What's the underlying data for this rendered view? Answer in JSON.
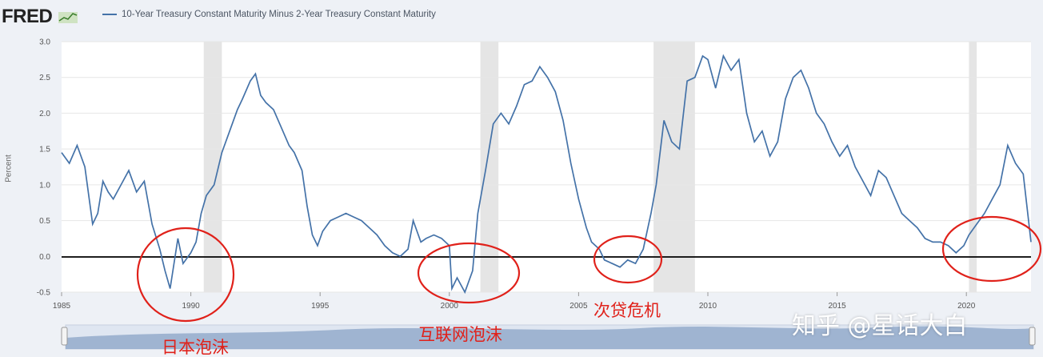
{
  "header": {
    "logo_text": "FRED",
    "legend_label": "10-Year Treasury Constant Maturity Minus 2-Year Treasury Constant Maturity"
  },
  "annotations": {
    "japan_bubble": "日本泡沫",
    "dotcom_bubble": "互联网泡沫",
    "subprime_crisis": "次贷危机"
  },
  "watermark": "知乎 @星话大白",
  "chart_data": {
    "type": "line",
    "title": "",
    "ylabel": "Percent",
    "xlabel": "",
    "xlim": [
      1985,
      2022.5
    ],
    "ylim": [
      -0.5,
      3.0
    ],
    "y_ticks": [
      "3.0",
      "2.5",
      "2.0",
      "1.5",
      "1.0",
      "0.5",
      "0.0",
      "-0.5"
    ],
    "x_ticks": [
      "1985",
      "1990",
      "1995",
      "2000",
      "2005",
      "2010",
      "2015",
      "2020"
    ],
    "recessions": [
      [
        1990.5,
        1991.2
      ],
      [
        2001.2,
        2001.9
      ],
      [
        2007.9,
        2009.5
      ],
      [
        2020.1,
        2020.4
      ]
    ],
    "colors": {
      "line": "#4472a8",
      "recession": "#e5e5e5",
      "zero_line": "#000000",
      "annotation": "#e0211a"
    },
    "series": [
      {
        "x": [
          1985.0,
          1985.3,
          1985.6,
          1985.9,
          1986.2,
          1986.4,
          1986.6,
          1986.8,
          1987.0,
          1987.3,
          1987.6,
          1987.9,
          1988.2,
          1988.5,
          1988.8,
          1989.0,
          1989.2,
          1989.5,
          1989.7,
          1990.0,
          1990.2,
          1990.4,
          1990.6,
          1990.9,
          1991.2,
          1991.5,
          1991.8,
          1992.0,
          1992.3,
          1992.5,
          1992.7,
          1992.9,
          1993.2,
          1993.5,
          1993.8,
          1994.0,
          1994.3,
          1994.5,
          1994.7,
          1994.9,
          1995.1,
          1995.4,
          1995.7,
          1996.0,
          1996.3,
          1996.6,
          1996.9,
          1997.2,
          1997.5,
          1997.8,
          1998.1,
          1998.4,
          1998.6,
          1998.9,
          1999.1,
          1999.4,
          1999.7,
          2000.0,
          2000.1,
          2000.3,
          2000.6,
          2000.9,
          2001.1,
          2001.4,
          2001.7,
          2002.0,
          2002.3,
          2002.6,
          2002.9,
          2003.2,
          2003.5,
          2003.8,
          2004.1,
          2004.4,
          2004.7,
          2005.0,
          2005.3,
          2005.5,
          2005.8,
          2006.0,
          2006.3,
          2006.6,
          2006.9,
          2007.2,
          2007.5,
          2007.8,
          2008.0,
          2008.3,
          2008.6,
          2008.9,
          2009.2,
          2009.5,
          2009.8,
          2010.0,
          2010.3,
          2010.6,
          2010.9,
          2011.2,
          2011.5,
          2011.8,
          2012.1,
          2012.4,
          2012.7,
          2013.0,
          2013.3,
          2013.6,
          2013.9,
          2014.2,
          2014.5,
          2014.8,
          2015.1,
          2015.4,
          2015.7,
          2016.0,
          2016.3,
          2016.6,
          2016.9,
          2017.2,
          2017.5,
          2017.8,
          2018.1,
          2018.4,
          2018.7,
          2019.0,
          2019.3,
          2019.6,
          2019.9,
          2020.1,
          2020.4,
          2020.7,
          2021.0,
          2021.3,
          2021.6,
          2021.9,
          2022.2,
          2022.5
        ],
        "y": [
          1.45,
          1.3,
          1.55,
          1.25,
          0.45,
          0.6,
          1.05,
          0.9,
          0.8,
          1.0,
          1.2,
          0.9,
          1.05,
          0.45,
          0.1,
          -0.2,
          -0.45,
          0.25,
          -0.1,
          0.05,
          0.2,
          0.6,
          0.85,
          1.0,
          1.45,
          1.75,
          2.05,
          2.2,
          2.45,
          2.55,
          2.25,
          2.15,
          2.05,
          1.8,
          1.55,
          1.45,
          1.2,
          0.7,
          0.3,
          0.15,
          0.35,
          0.5,
          0.55,
          0.6,
          0.55,
          0.5,
          0.4,
          0.3,
          0.15,
          0.05,
          0.0,
          0.1,
          0.5,
          0.2,
          0.25,
          0.3,
          0.25,
          0.15,
          -0.45,
          -0.3,
          -0.5,
          -0.2,
          0.6,
          1.2,
          1.85,
          2.0,
          1.85,
          2.1,
          2.4,
          2.45,
          2.65,
          2.5,
          2.3,
          1.9,
          1.3,
          0.8,
          0.4,
          0.2,
          0.1,
          -0.05,
          -0.1,
          -0.15,
          -0.05,
          -0.1,
          0.1,
          0.6,
          1.0,
          1.9,
          1.6,
          1.5,
          2.45,
          2.5,
          2.8,
          2.75,
          2.35,
          2.8,
          2.6,
          2.75,
          2.0,
          1.6,
          1.75,
          1.4,
          1.6,
          2.2,
          2.5,
          2.6,
          2.35,
          2.0,
          1.85,
          1.6,
          1.4,
          1.55,
          1.25,
          1.05,
          0.85,
          1.2,
          1.1,
          0.85,
          0.6,
          0.5,
          0.4,
          0.25,
          0.2,
          0.2,
          0.15,
          0.05,
          0.15,
          0.3,
          0.45,
          0.6,
          0.8,
          1.0,
          1.55,
          1.3,
          1.15,
          0.2
        ]
      }
    ]
  }
}
